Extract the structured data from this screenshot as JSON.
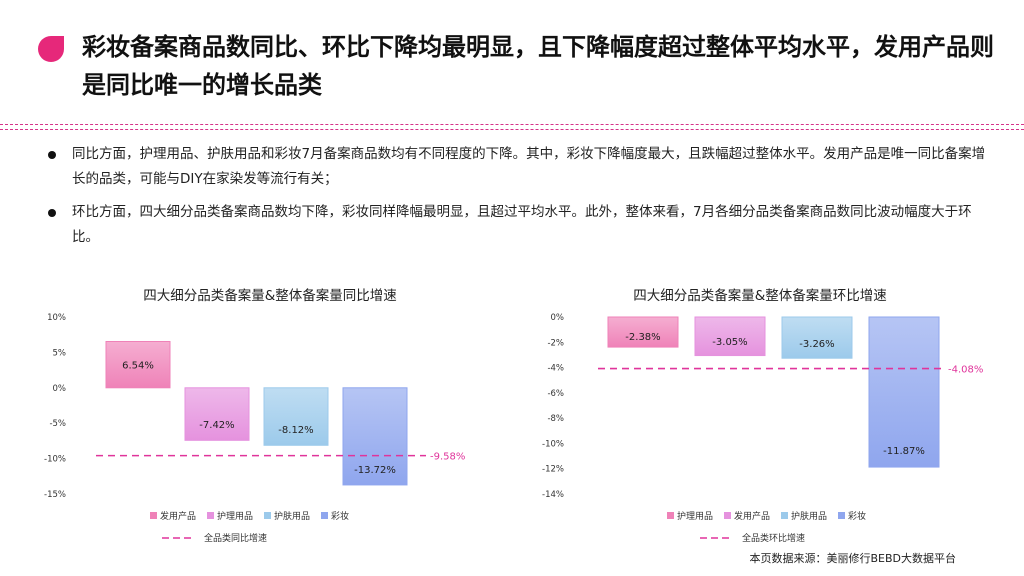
{
  "header": {
    "title": "彩妆备案商品数同比、环比下降均最明显，且下降幅度超过整体平均水平，发用产品则是同比唯一的增长品类",
    "accent_color": "#e6287a"
  },
  "bullets": [
    "同比方面，护理用品、护肤用品和彩妆7月备案商品数均有不同程度的下降。其中，彩妆下降幅度最大，且跌幅超过整体水平。发用产品是唯一同比备案增长的品类，可能与DIY在家染发等流行有关；",
    "环比方面，四大细分品类备案商品数均下降，彩妆同样降幅最明显，且超过平均水平。此外，整体来看，7月各细分品类备案商品数同比波动幅度大于环比。"
  ],
  "chart_data": [
    {
      "type": "bar",
      "title": "四大细分品类备案量&整体备案量同比增速",
      "categories": [
        "发用产品",
        "护理用品",
        "护肤用品",
        "彩妆"
      ],
      "values": [
        6.54,
        -7.42,
        -8.12,
        -13.72
      ],
      "data_labels": [
        "6.54%",
        "-7.42%",
        "-8.12%",
        "-13.72%"
      ],
      "colors": [
        "#ef82b8",
        "#e592de",
        "#9ccaeb",
        "#8fa6ee"
      ],
      "ylim": [
        -15,
        10
      ],
      "yticks": [
        10,
        5,
        0,
        -5,
        -10,
        -15
      ],
      "ytick_labels": [
        "10%",
        "5%",
        "0%",
        "-5%",
        "-10%",
        "-15%"
      ],
      "reference_line": {
        "name": "全品类同比增速",
        "value": -9.58,
        "label": "-9.58%",
        "color": "#e0349b"
      },
      "legend_position": "bottom",
      "grid": false
    },
    {
      "type": "bar",
      "title": "四大细分品类备案量&整体备案量环比增速",
      "categories": [
        "护理用品",
        "发用产品",
        "护肤用品",
        "彩妆"
      ],
      "values": [
        -2.38,
        -3.05,
        -3.26,
        -11.87
      ],
      "data_labels": [
        "-2.38%",
        "-3.05%",
        "-3.26%",
        "-11.87%"
      ],
      "colors": [
        "#ef82b8",
        "#e592de",
        "#9ccaeb",
        "#8fa6ee"
      ],
      "ylim": [
        -14,
        0
      ],
      "yticks": [
        0,
        -2,
        -4,
        -6,
        -8,
        -10,
        -12,
        -14
      ],
      "ytick_labels": [
        "0%",
        "-2%",
        "-4%",
        "-6%",
        "-8%",
        "-10%",
        "-12%",
        "-14%"
      ],
      "reference_line": {
        "name": "全品类环比增速",
        "value": -4.08,
        "label": "-4.08%",
        "color": "#e0349b"
      },
      "legend_position": "bottom",
      "grid": false
    }
  ],
  "footer": {
    "source": "本页数据来源：美丽修行BEBD大数据平台"
  }
}
